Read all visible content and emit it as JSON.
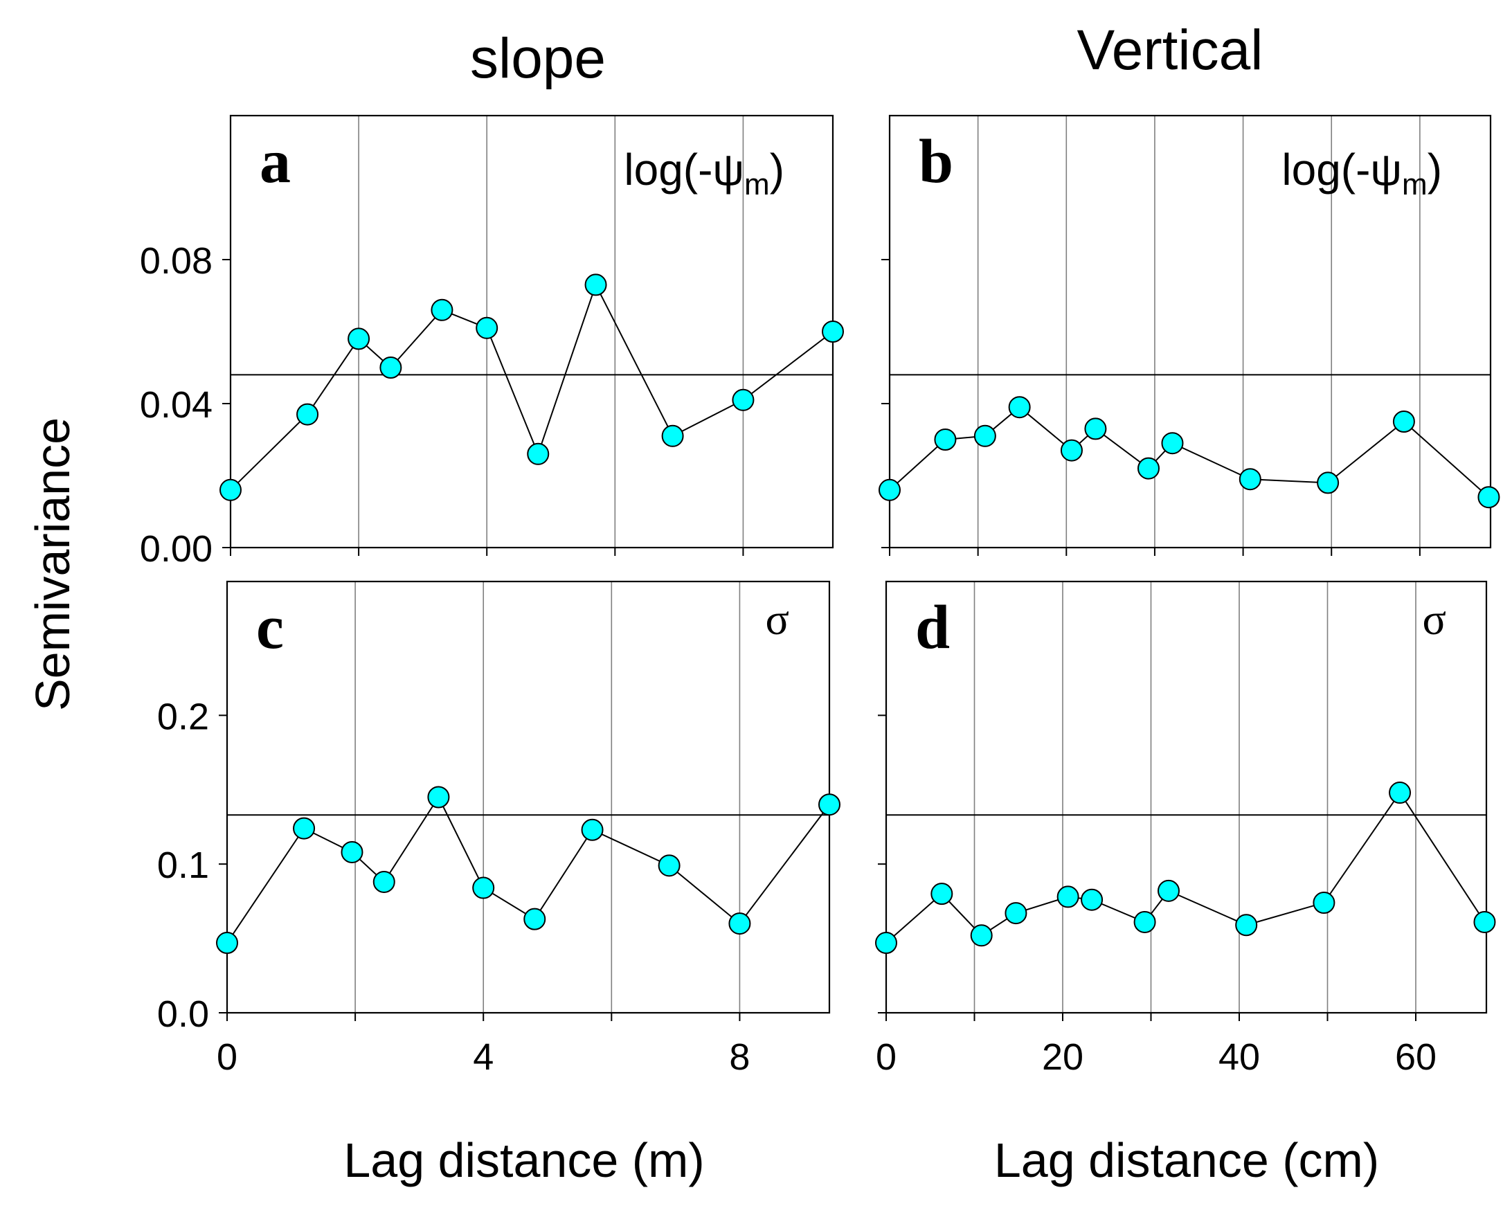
{
  "figure": {
    "col_titles": [
      "slope",
      "Vertical"
    ],
    "ylabel": "Semivariance",
    "xlabels": [
      "Lag distance (m)",
      "Lag distance (cm)"
    ],
    "marker_color": "#00FFFF",
    "line_color": "#000000",
    "grid_color": "#7f7f7f"
  },
  "chart_data": [
    {
      "panel": "a",
      "type": "line",
      "label": "a",
      "variable": "log(-ψm)",
      "xlim": [
        0,
        9.4
      ],
      "ylim": [
        0,
        0.12
      ],
      "xgrid": [
        2,
        4,
        6,
        8
      ],
      "yticks": [
        0,
        0.04,
        0.08
      ],
      "ytick_labels": [
        "0.00",
        "0.04",
        "0.08"
      ],
      "reference": 0.048,
      "x": [
        0,
        1.2,
        2.0,
        2.5,
        3.3,
        4.0,
        4.8,
        5.7,
        6.9,
        8.0,
        9.4
      ],
      "y": [
        0.016,
        0.037,
        0.058,
        0.05,
        0.066,
        0.061,
        0.026,
        0.073,
        0.031,
        0.041,
        0.06
      ]
    },
    {
      "panel": "b",
      "type": "line",
      "label": "b",
      "variable": "log(-ψm)",
      "xlim": [
        0,
        68
      ],
      "ylim": [
        0,
        0.12
      ],
      "xgrid": [
        10,
        20,
        30,
        40,
        50,
        60
      ],
      "yticks": [
        0,
        0.04,
        0.08
      ],
      "reference": 0.048,
      "x": [
        0,
        6.3,
        10.8,
        14.7,
        20.6,
        23.3,
        29.3,
        32.0,
        40.8,
        49.6,
        58.2,
        67.8
      ],
      "y": [
        0.016,
        0.03,
        0.031,
        0.039,
        0.027,
        0.033,
        0.022,
        0.029,
        0.019,
        0.018,
        0.035,
        0.014
      ]
    },
    {
      "panel": "c",
      "type": "line",
      "label": "c",
      "variable": "σ",
      "xlim": [
        0,
        9.4
      ],
      "ylim": [
        0,
        0.29
      ],
      "xgrid": [
        2,
        4,
        6,
        8
      ],
      "xticks": [
        0,
        4,
        8
      ],
      "xtick_labels": [
        "0",
        "4",
        "8"
      ],
      "yticks": [
        0,
        0.1,
        0.2
      ],
      "ytick_labels": [
        "0.0",
        "0.1",
        "0.2"
      ],
      "reference": 0.133,
      "x": [
        0,
        1.2,
        1.95,
        2.45,
        3.3,
        4.0,
        4.8,
        5.7,
        6.9,
        8.0,
        9.4
      ],
      "y": [
        0.047,
        0.124,
        0.108,
        0.088,
        0.145,
        0.084,
        0.063,
        0.123,
        0.099,
        0.06,
        0.14
      ]
    },
    {
      "panel": "d",
      "type": "line",
      "label": "d",
      "variable": "σ",
      "xlim": [
        0,
        68
      ],
      "ylim": [
        0,
        0.29
      ],
      "xgrid": [
        10,
        20,
        30,
        40,
        50,
        60
      ],
      "xticks": [
        0,
        20,
        40,
        60
      ],
      "xtick_labels": [
        "0",
        "20",
        "40",
        "60"
      ],
      "yticks": [
        0,
        0.1,
        0.2
      ],
      "reference": 0.133,
      "x": [
        0,
        6.3,
        10.8,
        14.7,
        20.6,
        23.3,
        29.3,
        32.0,
        40.8,
        49.6,
        58.2,
        67.8
      ],
      "y": [
        0.047,
        0.08,
        0.052,
        0.067,
        0.078,
        0.076,
        0.061,
        0.082,
        0.059,
        0.074,
        0.148,
        0.061
      ]
    }
  ]
}
